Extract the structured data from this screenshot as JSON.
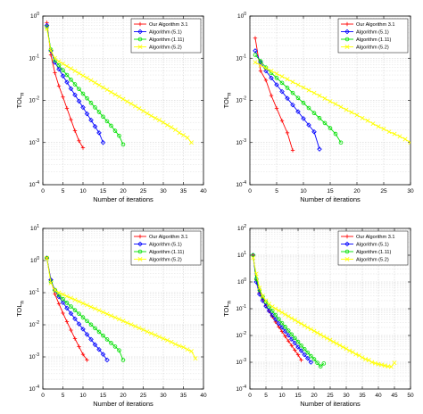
{
  "chart_data": [
    {
      "type": "line",
      "ylabel": "TOL",
      "ylabel_sub": "n",
      "xlabel": "Number of iterations",
      "xlim": [
        0,
        40
      ],
      "xticks": [
        0,
        5,
        10,
        15,
        20,
        25,
        30,
        35,
        40
      ],
      "ylim_exp": [
        -4,
        0
      ],
      "yscale": "log",
      "grid": true,
      "legend_position": "top-right",
      "series": [
        {
          "name": "Our Algorithm 3.1",
          "color": "#ff0000",
          "marker": "plus",
          "x": [
            1,
            2,
            3,
            4,
            5,
            6,
            7,
            8,
            9,
            10
          ],
          "y": [
            0.7,
            0.12,
            0.045,
            0.022,
            0.012,
            0.0065,
            0.0035,
            0.0019,
            0.0011,
            0.00075
          ]
        },
        {
          "name": "Algorithm (5.1)",
          "color": "#0000ff",
          "marker": "diamond",
          "x": [
            1,
            2,
            3,
            4,
            5,
            6,
            7,
            8,
            9,
            10,
            11,
            12,
            13,
            14,
            15
          ],
          "y": [
            0.6,
            0.15,
            0.08,
            0.055,
            0.038,
            0.027,
            0.019,
            0.0135,
            0.0096,
            0.0068,
            0.0048,
            0.0034,
            0.0024,
            0.0017,
            0.001
          ]
        },
        {
          "name": "Algorithm (1.11)",
          "color": "#00e000",
          "marker": "circle",
          "x": [
            1,
            2,
            3,
            4,
            5,
            6,
            7,
            8,
            9,
            10,
            11,
            12,
            13,
            14,
            15,
            16,
            17,
            18,
            19,
            20
          ],
          "y": [
            0.55,
            0.16,
            0.09,
            0.068,
            0.052,
            0.04,
            0.031,
            0.024,
            0.0186,
            0.0144,
            0.0112,
            0.0087,
            0.0068,
            0.0053,
            0.0041,
            0.0032,
            0.0025,
            0.0019,
            0.00145,
            0.0009
          ]
        },
        {
          "name": "Algorithm (5.2)",
          "color": "#ffff00",
          "marker": "x",
          "x": [
            1,
            2,
            3,
            4,
            5,
            6,
            7,
            8,
            9,
            10,
            11,
            12,
            13,
            14,
            15,
            16,
            17,
            18,
            19,
            20,
            21,
            22,
            23,
            24,
            25,
            26,
            27,
            28,
            29,
            30,
            31,
            32,
            33,
            34,
            35,
            36,
            37
          ],
          "y": [
            0.5,
            0.15,
            0.1,
            0.084,
            0.074,
            0.065,
            0.057,
            0.05,
            0.044,
            0.0387,
            0.034,
            0.03,
            0.0263,
            0.0231,
            0.0203,
            0.0179,
            0.0157,
            0.0138,
            0.0122,
            0.0107,
            0.0094,
            0.0083,
            0.0073,
            0.0064,
            0.0056,
            0.0049,
            0.0043,
            0.0038,
            0.0034,
            0.003,
            0.0026,
            0.0023,
            0.002,
            0.0017,
            0.0015,
            0.0013,
            0.001
          ]
        }
      ]
    },
    {
      "type": "line",
      "ylabel": "TOL",
      "ylabel_sub": "n",
      "xlabel": "Number of iterations",
      "xlim": [
        0,
        30
      ],
      "xticks": [
        0,
        5,
        10,
        15,
        20,
        25,
        30
      ],
      "ylim_exp": [
        -4,
        0
      ],
      "yscale": "log",
      "grid": true,
      "legend_position": "top-right",
      "series": [
        {
          "name": "Our Algorithm 3.1",
          "color": "#ff0000",
          "marker": "plus",
          "x": [
            1,
            2,
            3,
            4,
            5,
            6,
            7,
            8
          ],
          "y": [
            0.3,
            0.05,
            0.03,
            0.013,
            0.0065,
            0.0033,
            0.0017,
            0.00065
          ]
        },
        {
          "name": "Algorithm (5.1)",
          "color": "#0000ff",
          "marker": "diamond",
          "x": [
            1,
            2,
            3,
            4,
            5,
            6,
            7,
            8,
            9,
            10,
            11,
            12,
            13
          ],
          "y": [
            0.15,
            0.08,
            0.05,
            0.034,
            0.0235,
            0.0162,
            0.0112,
            0.0078,
            0.0054,
            0.0037,
            0.0026,
            0.0018,
            0.0007
          ]
        },
        {
          "name": "Algorithm (1.11)",
          "color": "#00e000",
          "marker": "circle",
          "x": [
            1,
            2,
            3,
            4,
            5,
            6,
            7,
            8,
            9,
            10,
            11,
            12,
            13,
            14,
            15,
            16,
            17
          ],
          "y": [
            0.12,
            0.085,
            0.06,
            0.045,
            0.034,
            0.026,
            0.0198,
            0.015,
            0.0114,
            0.0087,
            0.0066,
            0.005,
            0.0038,
            0.0029,
            0.0022,
            0.0016,
            0.001
          ]
        },
        {
          "name": "Algorithm (5.2)",
          "color": "#ffff00",
          "marker": "x",
          "x": [
            1,
            2,
            3,
            4,
            5,
            6,
            7,
            8,
            9,
            10,
            11,
            12,
            13,
            14,
            15,
            16,
            17,
            18,
            19,
            20,
            21,
            22,
            23,
            24,
            25,
            26,
            27,
            28,
            29,
            30
          ],
          "y": [
            0.08,
            0.068,
            0.058,
            0.05,
            0.043,
            0.037,
            0.0318,
            0.0273,
            0.0235,
            0.0202,
            0.0174,
            0.015,
            0.0129,
            0.0111,
            0.0095,
            0.0082,
            0.007,
            0.006,
            0.0052,
            0.0045,
            0.0038,
            0.0033,
            0.0028,
            0.0024,
            0.0021,
            0.0018,
            0.0016,
            0.0014,
            0.0012,
            0.001
          ]
        }
      ]
    },
    {
      "type": "line",
      "ylabel": "TOL",
      "ylabel_sub": "n",
      "xlabel": "Number of iterations",
      "xlim": [
        0,
        40
      ],
      "xticks": [
        0,
        5,
        10,
        15,
        20,
        25,
        30,
        35,
        40
      ],
      "ylim_exp": [
        -4,
        1
      ],
      "yscale": "log",
      "grid": true,
      "legend_position": "top-right",
      "series": [
        {
          "name": "Our Algorithm 3.1",
          "color": "#ff0000",
          "marker": "plus",
          "x": [
            1,
            2,
            3,
            4,
            5,
            6,
            7,
            8,
            9,
            10,
            11
          ],
          "y": [
            1.2,
            0.25,
            0.09,
            0.045,
            0.023,
            0.0125,
            0.0068,
            0.0037,
            0.0021,
            0.0012,
            0.0008
          ]
        },
        {
          "name": "Algorithm (5.1)",
          "color": "#0000ff",
          "marker": "diamond",
          "x": [
            1,
            2,
            3,
            4,
            5,
            6,
            7,
            8,
            9,
            10,
            11,
            12,
            13,
            14,
            15,
            16
          ],
          "y": [
            1.2,
            0.25,
            0.12,
            0.075,
            0.049,
            0.033,
            0.0225,
            0.0154,
            0.0106,
            0.0073,
            0.005,
            0.0035,
            0.0024,
            0.0017,
            0.0012,
            0.0008
          ]
        },
        {
          "name": "Algorithm (1.11)",
          "color": "#00e000",
          "marker": "circle",
          "x": [
            1,
            2,
            3,
            4,
            5,
            6,
            7,
            8,
            9,
            10,
            11,
            12,
            13,
            14,
            15,
            16,
            17,
            18,
            19,
            20
          ],
          "y": [
            1.2,
            0.22,
            0.12,
            0.085,
            0.063,
            0.048,
            0.037,
            0.0285,
            0.022,
            0.017,
            0.0131,
            0.0101,
            0.0078,
            0.006,
            0.0046,
            0.0035,
            0.0027,
            0.0021,
            0.0016,
            0.0008
          ]
        },
        {
          "name": "Algorithm (5.2)",
          "color": "#ffff00",
          "marker": "x",
          "x": [
            1,
            2,
            3,
            4,
            5,
            6,
            7,
            8,
            9,
            10,
            11,
            12,
            13,
            14,
            15,
            16,
            17,
            18,
            19,
            20,
            21,
            22,
            23,
            24,
            25,
            26,
            27,
            28,
            29,
            30,
            31,
            32,
            33,
            34,
            35,
            36,
            37,
            38
          ],
          "y": [
            1.2,
            0.2,
            0.12,
            0.1,
            0.088,
            0.077,
            0.068,
            0.06,
            0.053,
            0.0465,
            0.041,
            0.036,
            0.0318,
            0.028,
            0.0247,
            0.0217,
            0.0191,
            0.0169,
            0.0149,
            0.0131,
            0.0115,
            0.0102,
            0.009,
            0.0079,
            0.007,
            0.0061,
            0.0054,
            0.0048,
            0.0042,
            0.0037,
            0.0033,
            0.0029,
            0.0025,
            0.0022,
            0.002,
            0.0017,
            0.0015,
            0.0009
          ]
        }
      ]
    },
    {
      "type": "line",
      "ylabel": "TOL",
      "ylabel_sub": "n",
      "xlabel": "Number of iterations",
      "xlim": [
        0,
        50
      ],
      "xticks": [
        0,
        5,
        10,
        15,
        20,
        25,
        30,
        35,
        40,
        45,
        50
      ],
      "ylim_exp": [
        -4,
        2
      ],
      "yscale": "log",
      "grid": true,
      "legend_position": "top-right",
      "series": [
        {
          "name": "Our Algorithm 3.1",
          "color": "#ff0000",
          "marker": "plus",
          "x": [
            1,
            2,
            3,
            4,
            5,
            6,
            7,
            8,
            9,
            10,
            11,
            12,
            13,
            14,
            15,
            16
          ],
          "y": [
            10,
            1.2,
            0.4,
            0.22,
            0.13,
            0.08,
            0.05,
            0.032,
            0.021,
            0.014,
            0.0093,
            0.0062,
            0.0042,
            0.0028,
            0.0019,
            0.0012
          ]
        },
        {
          "name": "Algorithm (5.1)",
          "color": "#0000ff",
          "marker": "diamond",
          "x": [
            1,
            2,
            3,
            4,
            5,
            6,
            7,
            8,
            9,
            10,
            11,
            12,
            13,
            14,
            15,
            16,
            17,
            18,
            19
          ],
          "y": [
            10,
            1.0,
            0.35,
            0.2,
            0.125,
            0.083,
            0.057,
            0.04,
            0.028,
            0.02,
            0.0143,
            0.0102,
            0.0073,
            0.0052,
            0.0037,
            0.0027,
            0.0019,
            0.0014,
            0.001
          ]
        },
        {
          "name": "Algorithm (1.11)",
          "color": "#00e000",
          "marker": "circle",
          "x": [
            1,
            2,
            3,
            4,
            5,
            6,
            7,
            8,
            9,
            10,
            11,
            12,
            13,
            14,
            15,
            16,
            17,
            18,
            19,
            20,
            21,
            22,
            23
          ],
          "y": [
            10,
            1.3,
            0.5,
            0.28,
            0.18,
            0.12,
            0.083,
            0.058,
            0.041,
            0.029,
            0.021,
            0.0152,
            0.011,
            0.008,
            0.0058,
            0.0042,
            0.0031,
            0.0023,
            0.0017,
            0.0013,
            0.00095,
            0.0007,
            0.0009
          ]
        },
        {
          "name": "Algorithm (5.2)",
          "color": "#ffff00",
          "marker": "x",
          "x": [
            1,
            2,
            3,
            4,
            5,
            6,
            7,
            8,
            9,
            10,
            11,
            12,
            13,
            14,
            15,
            16,
            17,
            18,
            19,
            20,
            21,
            22,
            23,
            24,
            25,
            26,
            27,
            28,
            29,
            30,
            31,
            32,
            33,
            34,
            35,
            36,
            37,
            38,
            39,
            40,
            41,
            42,
            43,
            44,
            45
          ],
          "y": [
            8,
            2.0,
            0.6,
            0.3,
            0.2,
            0.15,
            0.12,
            0.1,
            0.085,
            0.072,
            0.061,
            0.052,
            0.044,
            0.038,
            0.032,
            0.0275,
            0.0235,
            0.02,
            0.0172,
            0.0147,
            0.0126,
            0.0108,
            0.0092,
            0.0079,
            0.0068,
            0.0058,
            0.005,
            0.0043,
            0.0037,
            0.0032,
            0.0027,
            0.0024,
            0.002,
            0.0018,
            0.0015,
            0.0013,
            0.0012,
            0.001,
            0.00092,
            0.00085,
            0.0008,
            0.00075,
            0.0007,
            0.00068,
            0.00095
          ]
        }
      ]
    }
  ]
}
